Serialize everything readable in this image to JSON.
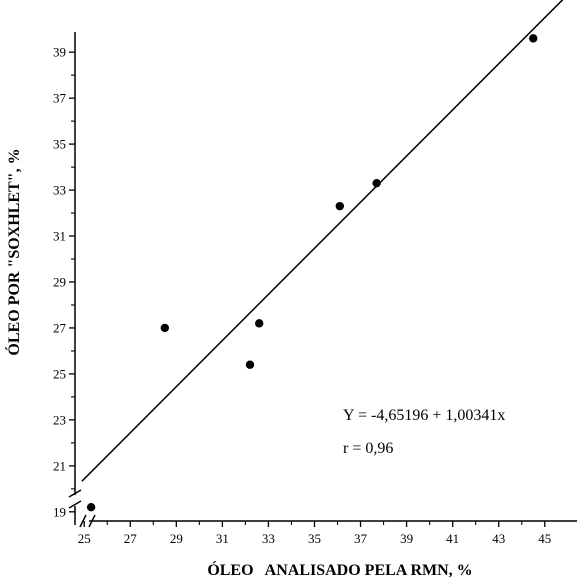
{
  "chart_data": {
    "type": "scatter",
    "xlabel": "ÓLEO   ANALISADO PELA RMN, %",
    "ylabel": "ÓLEO POR \"SOXHLET\", %",
    "xlim": [
      24.6,
      46.4
    ],
    "ylim": [
      18.6,
      40.4
    ],
    "x_ticks": [
      "25",
      "27",
      "29",
      "31",
      "33",
      "35",
      "37",
      "39",
      "41",
      "43",
      "45"
    ],
    "y_ticks": [
      "19",
      "21",
      "23",
      "25",
      "27",
      "29",
      "31",
      "33",
      "35",
      "37",
      "39"
    ],
    "axis_break": true,
    "grid": false,
    "points": [
      {
        "x": 25.3,
        "y": 19.2
      },
      {
        "x": 28.5,
        "y": 27.0
      },
      {
        "x": 32.2,
        "y": 25.4
      },
      {
        "x": 32.6,
        "y": 27.2
      },
      {
        "x": 36.1,
        "y": 32.3
      },
      {
        "x": 37.7,
        "y": 33.3
      },
      {
        "x": 44.5,
        "y": 39.6
      }
    ],
    "regression": {
      "intercept": -4.65196,
      "slope": 1.00341,
      "x_range": [
        24.9,
        46.0
      ]
    },
    "annotations": [
      "Y  =  -4,65196  +  1,00341x",
      "r  =  0,96"
    ]
  }
}
